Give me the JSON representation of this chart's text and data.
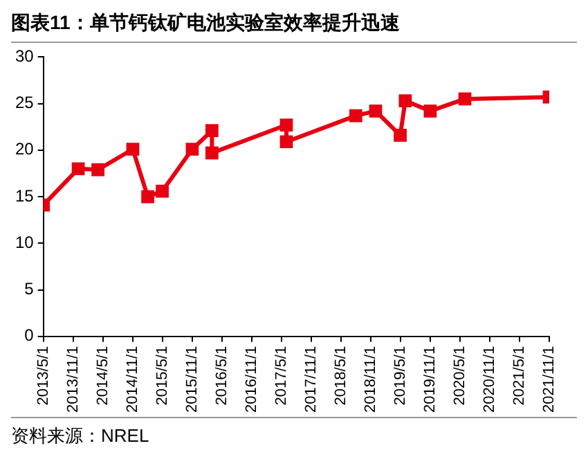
{
  "chart_data": {
    "type": "line",
    "title": "图表11：单节钙钛矿电池实验室效率提升迅速",
    "x": [
      "2013-05",
      "2013-12",
      "2014-04",
      "2014-11",
      "2015-02",
      "2015-05",
      "2015-11",
      "2016-03",
      "2016-03",
      "2017-06",
      "2017-06",
      "2018-08",
      "2018-12",
      "2019-05",
      "2019-06",
      "2019-11",
      "2020-06",
      "2021-11"
    ],
    "series": [
      {
        "color": "#e60012",
        "values": [
          14.1,
          18.0,
          17.9,
          20.1,
          15.0,
          15.6,
          20.1,
          22.1,
          19.7,
          22.7,
          20.9,
          23.7,
          24.2,
          21.6,
          25.3,
          24.2,
          25.5,
          25.7
        ]
      }
    ],
    "xlim": [
      "2013-05-01",
      "2021-11-01"
    ],
    "xticks": [
      {
        "value": "2013-05-01",
        "label": "2013/5/1"
      },
      {
        "value": "2013-11-01",
        "label": "2013/11/1"
      },
      {
        "value": "2014-05-01",
        "label": "2014/5/1"
      },
      {
        "value": "2014-11-01",
        "label": "2014/11/1"
      },
      {
        "value": "2015-05-01",
        "label": "2015/5/1"
      },
      {
        "value": "2015-11-01",
        "label": "2015/11/1"
      },
      {
        "value": "2016-05-01",
        "label": "2016/5/1"
      },
      {
        "value": "2016-11-01",
        "label": "2016/11/1"
      },
      {
        "value": "2017-05-01",
        "label": "2017/5/1"
      },
      {
        "value": "2017-11-01",
        "label": "2017/11/1"
      },
      {
        "value": "2018-05-01",
        "label": "2018/5/1"
      },
      {
        "value": "2018-11-01",
        "label": "2018/11/1"
      },
      {
        "value": "2019-05-01",
        "label": "2019/5/1"
      },
      {
        "value": "2019-11-01",
        "label": "2019/11/1"
      },
      {
        "value": "2020-05-01",
        "label": "2020/5/1"
      },
      {
        "value": "2020-11-01",
        "label": "2020/11/1"
      },
      {
        "value": "2021-05-01",
        "label": "2021/5/1"
      },
      {
        "value": "2021-11-01",
        "label": "2021/11/1"
      }
    ],
    "ylim": [
      0,
      30
    ],
    "yticks": [
      0,
      5,
      10,
      15,
      20,
      25,
      30
    ],
    "grid": false,
    "legend": false,
    "marker": "square",
    "line_style": "solid",
    "annotations": [
      "资料来源：NREL"
    ]
  }
}
